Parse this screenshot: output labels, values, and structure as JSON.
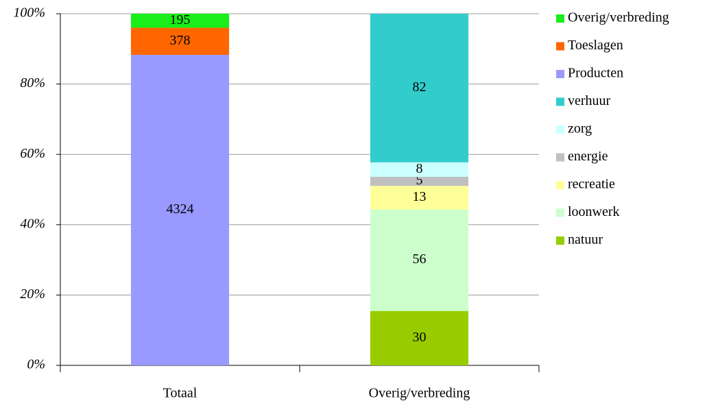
{
  "chart_data": {
    "type": "bar",
    "stack": "percent",
    "categories": [
      "Totaal",
      "Overig/verbreding"
    ],
    "series": [
      {
        "name": "natuur",
        "color": "#99cc00",
        "values": [
          null,
          30
        ]
      },
      {
        "name": "loonwerk",
        "color": "#ccffcc",
        "values": [
          null,
          56
        ]
      },
      {
        "name": "recreatie",
        "color": "#ffff99",
        "values": [
          null,
          13
        ]
      },
      {
        "name": "energie",
        "color": "#c0c0c0",
        "values": [
          null,
          5
        ]
      },
      {
        "name": "zorg",
        "color": "#ccffff",
        "values": [
          null,
          8
        ]
      },
      {
        "name": "verhuur",
        "color": "#33cccc",
        "values": [
          null,
          82
        ]
      },
      {
        "name": "Producten",
        "color": "#9999ff",
        "values": [
          4324,
          null
        ]
      },
      {
        "name": "Toeslagen",
        "color": "#ff6600",
        "values": [
          378,
          null
        ]
      },
      {
        "name": "Overig/verbreding",
        "color": "#1aee1a",
        "values": [
          195,
          null
        ]
      }
    ],
    "ylim": [
      0,
      100
    ],
    "yticks": [
      {
        "value": 0,
        "label": "0%"
      },
      {
        "value": 20,
        "label": "20%"
      },
      {
        "value": 40,
        "label": "40%"
      },
      {
        "value": 60,
        "label": "60%"
      },
      {
        "value": 80,
        "label": "80%"
      },
      {
        "value": 100,
        "label": "100%"
      }
    ],
    "grid": true,
    "legend": "right"
  }
}
